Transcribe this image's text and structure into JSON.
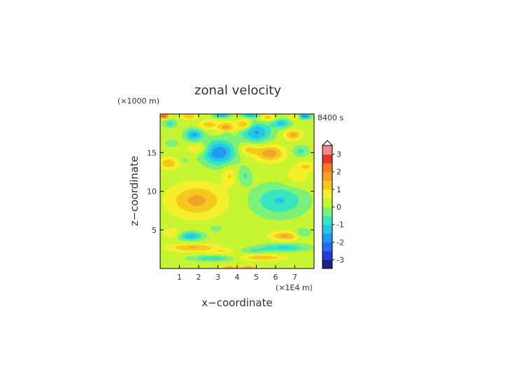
{
  "chart_data": {
    "type": "heatmap",
    "title": "zonal velocity",
    "xlabel": "x−coordinate",
    "ylabel": "z−coordinate",
    "x_unit": "(×1E4 m)",
    "y_unit": "(×1000 m)",
    "time_label": "8400 s",
    "xlim": [
      0,
      8
    ],
    "ylim": [
      0,
      20
    ],
    "x_ticks": [
      1,
      2,
      3,
      4,
      5,
      6,
      7
    ],
    "y_ticks": [
      5,
      10,
      15
    ],
    "colorbar": {
      "ticks": [
        3,
        2,
        1,
        0,
        -1,
        -2,
        -3
      ],
      "levels": [
        -3.5,
        -3,
        -2.5,
        -2,
        -1.5,
        -1,
        -0.5,
        0,
        0.5,
        1,
        1.5,
        2,
        2.5,
        3,
        3.5
      ],
      "colors": [
        "#1b1e8c",
        "#1f3fd0",
        "#2a6cf0",
        "#1e9af0",
        "#28c4e8",
        "#36e6c0",
        "#7df07a",
        "#c8f532",
        "#f6f02c",
        "#f5c81e",
        "#f4a12a",
        "#f47a28",
        "#e8352a",
        "#f08a8a"
      ],
      "extend_max": true
    },
    "features": [
      {
        "x": 3.05,
        "z": 15.0,
        "sx": 0.6,
        "sy": 1.1,
        "amp": -2.2
      },
      {
        "x": 1.75,
        "z": 17.3,
        "sx": 0.32,
        "sy": 0.55,
        "amp": -1.8
      },
      {
        "x": 0.5,
        "z": 18.8,
        "sx": 0.25,
        "sy": 0.4,
        "amp": -1.0
      },
      {
        "x": 3.45,
        "z": 17.5,
        "sx": 0.2,
        "sy": 0.35,
        "amp": -0.8
      },
      {
        "x": 3.45,
        "z": 18.2,
        "sx": 0.3,
        "sy": 0.5,
        "amp": 1.6
      },
      {
        "x": 2.5,
        "z": 18.6,
        "sx": 0.35,
        "sy": 0.4,
        "amp": 1.0
      },
      {
        "x": 2.0,
        "z": 15.5,
        "sx": 0.4,
        "sy": 0.5,
        "amp": 0.9
      },
      {
        "x": 0.45,
        "z": 13.6,
        "sx": 0.35,
        "sy": 0.5,
        "amp": 1.2
      },
      {
        "x": 1.2,
        "z": 14.0,
        "sx": 0.25,
        "sy": 0.35,
        "amp": -0.4
      },
      {
        "x": 0.6,
        "z": 16.2,
        "sx": 0.3,
        "sy": 0.4,
        "amp": -0.5
      },
      {
        "x": 1.5,
        "z": 19.7,
        "sx": 0.3,
        "sy": 0.25,
        "amp": 1.2
      },
      {
        "x": 0.2,
        "z": 19.7,
        "sx": 0.2,
        "sy": 0.25,
        "amp": 2.4
      },
      {
        "x": 3.2,
        "z": 19.8,
        "sx": 0.3,
        "sy": 0.2,
        "amp": -1.8
      },
      {
        "x": 1.9,
        "z": 8.8,
        "sx": 0.95,
        "sy": 1.4,
        "amp": 1.4
      },
      {
        "x": 1.6,
        "z": 4.2,
        "sx": 0.45,
        "sy": 0.4,
        "amp": -1.6
      },
      {
        "x": 2.9,
        "z": 5.2,
        "sx": 0.2,
        "sy": 0.25,
        "amp": -0.8
      },
      {
        "x": 1.7,
        "z": 2.7,
        "sx": 0.85,
        "sy": 0.35,
        "amp": 1.3
      },
      {
        "x": 2.7,
        "z": 1.3,
        "sx": 0.8,
        "sy": 0.25,
        "amp": -1.2
      },
      {
        "x": 3.3,
        "z": 2.2,
        "sx": 0.5,
        "sy": 0.25,
        "amp": 0.7
      },
      {
        "x": 0.6,
        "z": 4.6,
        "sx": 0.3,
        "sy": 0.4,
        "amp": 0.8
      },
      {
        "x": 3.6,
        "z": 0.15,
        "sx": 0.3,
        "sy": 0.15,
        "amp": 1.5
      },
      {
        "x": 3.6,
        "z": 12.0,
        "sx": 0.25,
        "sy": 0.8,
        "amp": 0.8
      },
      {
        "x": 5.0,
        "z": 17.6,
        "sx": 0.55,
        "sy": 0.9,
        "amp": -1.8
      },
      {
        "x": 5.7,
        "z": 14.9,
        "sx": 0.5,
        "sy": 0.7,
        "amp": 1.6
      },
      {
        "x": 4.6,
        "z": 15.4,
        "sx": 0.35,
        "sy": 0.5,
        "amp": 1.0
      },
      {
        "x": 4.35,
        "z": 18.6,
        "sx": 0.25,
        "sy": 0.45,
        "amp": 1.6
      },
      {
        "x": 6.3,
        "z": 18.8,
        "sx": 0.35,
        "sy": 0.45,
        "amp": -1.4
      },
      {
        "x": 6.9,
        "z": 17.3,
        "sx": 0.3,
        "sy": 0.45,
        "amp": 1.4
      },
      {
        "x": 7.3,
        "z": 15.2,
        "sx": 0.3,
        "sy": 0.5,
        "amp": -0.9
      },
      {
        "x": 7.5,
        "z": 19.7,
        "sx": 0.25,
        "sy": 0.25,
        "amp": -2.2
      },
      {
        "x": 7.0,
        "z": 19.6,
        "sx": 0.2,
        "sy": 0.25,
        "amp": 1.2
      },
      {
        "x": 4.7,
        "z": 19.8,
        "sx": 0.3,
        "sy": 0.2,
        "amp": -1.6
      },
      {
        "x": 5.6,
        "z": 19.5,
        "sx": 0.3,
        "sy": 0.3,
        "amp": 1.1
      },
      {
        "x": 7.6,
        "z": 13.2,
        "sx": 0.3,
        "sy": 0.4,
        "amp": 0.8
      },
      {
        "x": 6.2,
        "z": 8.8,
        "sx": 0.95,
        "sy": 1.4,
        "amp": -1.3
      },
      {
        "x": 6.5,
        "z": 4.2,
        "sx": 0.5,
        "sy": 0.4,
        "amp": 1.4
      },
      {
        "x": 6.4,
        "z": 2.7,
        "sx": 0.9,
        "sy": 0.35,
        "amp": -1.3
      },
      {
        "x": 5.3,
        "z": 1.4,
        "sx": 0.8,
        "sy": 0.25,
        "amp": 1.2
      },
      {
        "x": 4.8,
        "z": 2.3,
        "sx": 0.5,
        "sy": 0.25,
        "amp": -0.7
      },
      {
        "x": 7.4,
        "z": 4.6,
        "sx": 0.3,
        "sy": 0.4,
        "amp": -0.8
      },
      {
        "x": 4.6,
        "z": 0.15,
        "sx": 0.3,
        "sy": 0.15,
        "amp": 1.6
      },
      {
        "x": 4.4,
        "z": 12.0,
        "sx": 0.25,
        "sy": 0.8,
        "amp": -0.8
      },
      {
        "x": 7.1,
        "z": 11.8,
        "sx": 0.5,
        "sy": 1.0,
        "amp": 0.5
      }
    ]
  }
}
